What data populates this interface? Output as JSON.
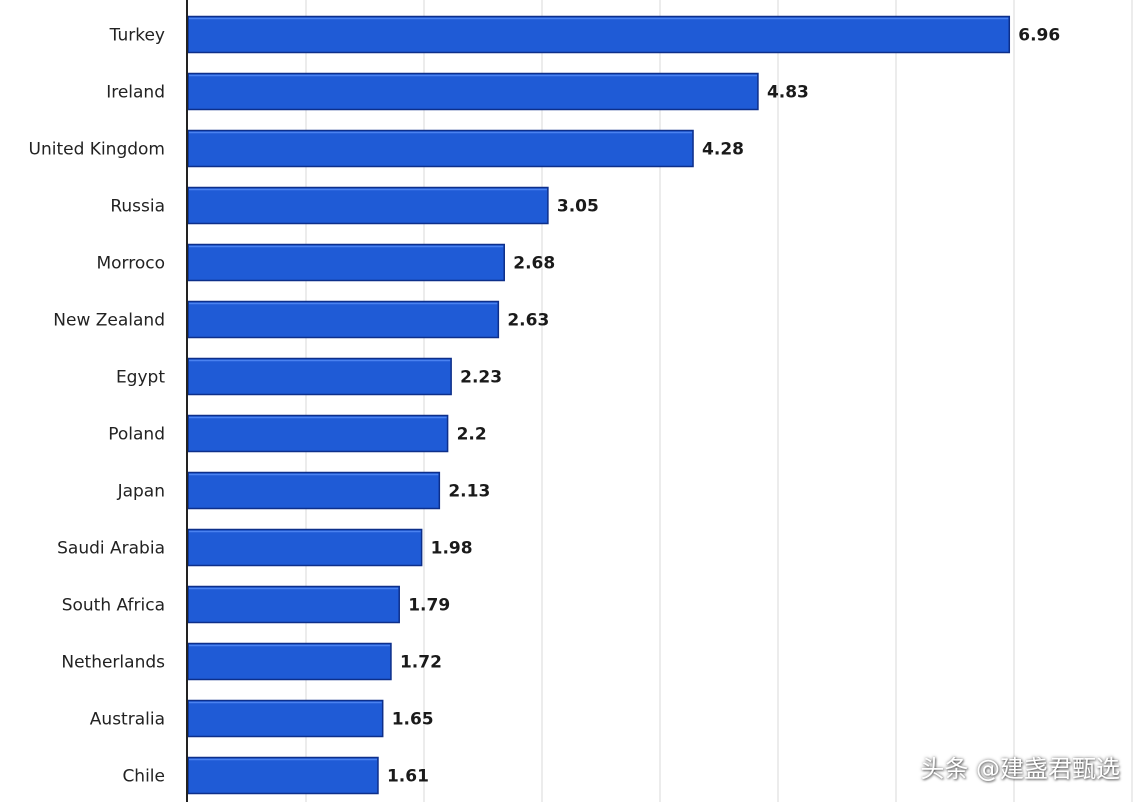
{
  "chart_data": {
    "type": "bar",
    "orientation": "horizontal",
    "title": "",
    "xlabel": "",
    "ylabel": "",
    "categories": [
      "Turkey",
      "Ireland",
      "United Kingdom",
      "Russia",
      "Morroco",
      "New Zealand",
      "Egypt",
      "Poland",
      "Japan",
      "Saudi Arabia",
      "South Africa",
      "Netherlands",
      "Australia",
      "Chile"
    ],
    "values": [
      6.96,
      4.83,
      4.28,
      3.05,
      2.68,
      2.63,
      2.23,
      2.2,
      2.13,
      1.98,
      1.79,
      1.72,
      1.65,
      1.61
    ],
    "value_labels": [
      "6.96",
      "4.83",
      "4.28",
      "3.05",
      "2.68",
      "2.63",
      "2.23",
      "2.2",
      "2.13",
      "1.98",
      "1.79",
      "1.72",
      "1.65",
      "1.61"
    ],
    "xlim": [
      0,
      8
    ],
    "grid": true,
    "bar_color": "#1f5bd6",
    "bar_border_color": "#0d2f8a",
    "grid_color": "#d9d9d9"
  },
  "watermark": {
    "text": "头条 @建盏君甄选"
  }
}
